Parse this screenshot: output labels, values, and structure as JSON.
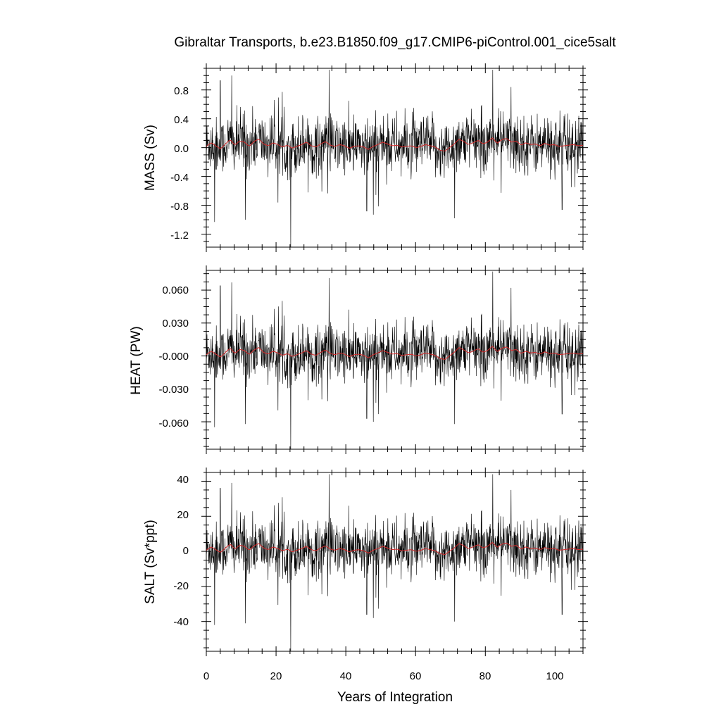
{
  "chart_data": {
    "type": "line",
    "title": "Gibraltar Transports, b.e23.B1850.f09_g17.CMIP6-piControl.001_cice5salt",
    "xlabel": "Years of Integration",
    "xlim": [
      0,
      108
    ],
    "xticks": [
      "0",
      "20",
      "40",
      "60",
      "80",
      "100"
    ],
    "colors": {
      "raw": "#000000",
      "smooth": "#d62728"
    },
    "panels": [
      {
        "name": "mass",
        "ylabel": "MASS (Sv)",
        "ylim": [
          -1.38,
          1.1
        ],
        "yticks": [
          "0.8",
          "0.4",
          "0.0",
          "-0.4",
          "-0.8",
          "-1.2"
        ],
        "scale": 0.085,
        "std": 0.2,
        "spikes": [
          [
            2.4,
            -1.03
          ],
          [
            4.0,
            0.93
          ],
          [
            7.3,
            1.0
          ],
          [
            11.2,
            -1.0
          ],
          [
            24.2,
            -1.38
          ],
          [
            35.2,
            1.08
          ],
          [
            46.0,
            -0.88
          ],
          [
            47.9,
            -0.93
          ],
          [
            71.2,
            -0.98
          ],
          [
            82.1,
            1.08
          ],
          [
            87.4,
            0.84
          ],
          [
            102.0,
            -0.86
          ]
        ]
      },
      {
        "name": "heat",
        "ylabel": "HEAT (PW)",
        "ylim": [
          -0.085,
          0.078
        ],
        "yticks": [
          "0.060",
          "0.030",
          "-0.000",
          "-0.030",
          "-0.060"
        ],
        "scale": 0.0055,
        "std": 0.013,
        "spikes": [
          [
            2.4,
            -0.065
          ],
          [
            4.0,
            0.064
          ],
          [
            7.3,
            0.067
          ],
          [
            11.2,
            -0.062
          ],
          [
            24.2,
            -0.085
          ],
          [
            35.2,
            0.071
          ],
          [
            46.0,
            -0.057
          ],
          [
            47.9,
            -0.06
          ],
          [
            71.2,
            -0.062
          ],
          [
            82.1,
            0.077
          ],
          [
            87.4,
            0.062
          ],
          [
            102.0,
            -0.053
          ]
        ]
      },
      {
        "name": "salt",
        "ylabel": "SALT (Sv*ppt)",
        "ylim": [
          -57,
          45
        ],
        "yticks": [
          "40",
          "20",
          "0",
          "-20",
          "-40"
        ],
        "scale": 3.2,
        "std": 8,
        "spikes": [
          [
            2.4,
            -42
          ],
          [
            4.0,
            36
          ],
          [
            7.3,
            39
          ],
          [
            11.2,
            -41
          ],
          [
            24.2,
            -57
          ],
          [
            35.2,
            44
          ],
          [
            46.0,
            -36
          ],
          [
            47.9,
            -38
          ],
          [
            71.2,
            -40
          ],
          [
            82.1,
            44
          ],
          [
            87.4,
            35
          ],
          [
            102.0,
            -36
          ]
        ]
      }
    ]
  }
}
